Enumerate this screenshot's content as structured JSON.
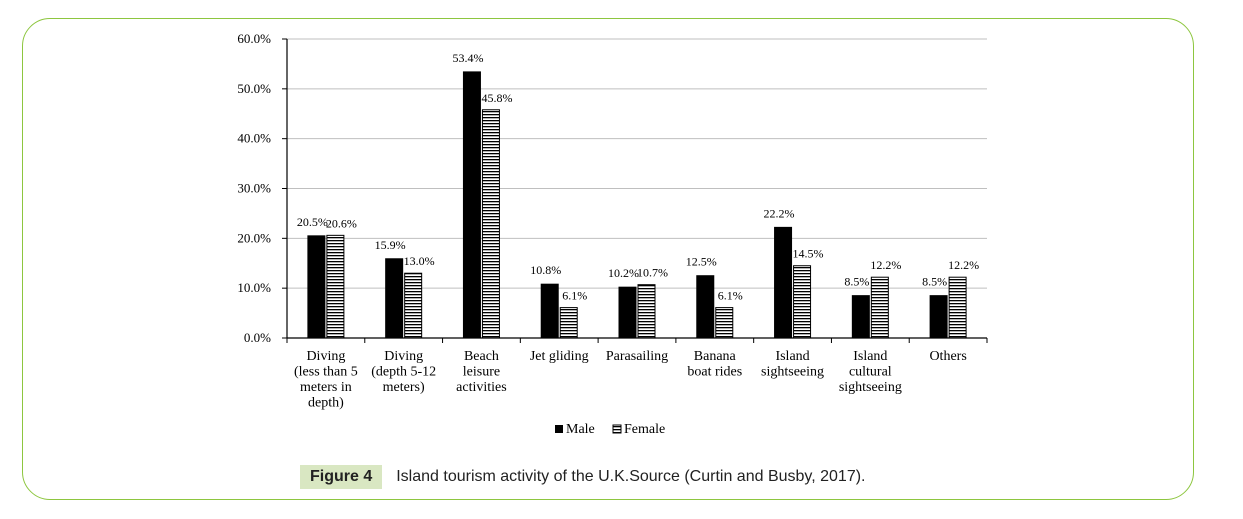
{
  "chart_data": {
    "type": "bar",
    "categories": [
      [
        "Diving",
        "(less than 5",
        "meters in",
        "depth)"
      ],
      [
        "Diving",
        "(depth 5-12",
        "meters)"
      ],
      [
        "Beach",
        "leisure",
        "activities"
      ],
      [
        "Jet gliding"
      ],
      [
        "Parasailing"
      ],
      [
        "Banana",
        "boat rides"
      ],
      [
        "Island",
        "sightseeing"
      ],
      [
        "Island",
        "cultural",
        "sightseeing"
      ],
      [
        "Others"
      ]
    ],
    "series": [
      {
        "name": "Male",
        "values": [
          20.5,
          15.9,
          53.4,
          10.8,
          10.2,
          12.5,
          22.2,
          8.5,
          8.5
        ],
        "labels": [
          "20.5%",
          "15.9%",
          "53.4%",
          "10.8%",
          "10.2%",
          "12.5%",
          "22.2%",
          "8.5%",
          "8.5%"
        ]
      },
      {
        "name": "Female",
        "values": [
          20.6,
          13.0,
          45.8,
          6.1,
          10.7,
          6.1,
          14.5,
          12.2,
          12.2
        ],
        "labels": [
          "20.6%",
          "13.0%",
          "45.8%",
          "6.1%",
          "10.7%",
          "6.1%",
          "14.5%",
          "12.2%",
          "12.2%"
        ]
      }
    ],
    "yticks": [
      "0.0%",
      "10.0%",
      "20.0%",
      "30.0%",
      "40.0%",
      "50.0%",
      "60.0%"
    ],
    "ylim": [
      0,
      60
    ],
    "grid": true,
    "legend": "bottom",
    "colors": {
      "male": "#000000",
      "female_stripe": "#000000",
      "grid": "#bfbfbf"
    }
  },
  "caption": {
    "label": "Figure 4",
    "text": "Island tourism activity of the U.K.Source (Curtin and Busby, 2017)."
  }
}
